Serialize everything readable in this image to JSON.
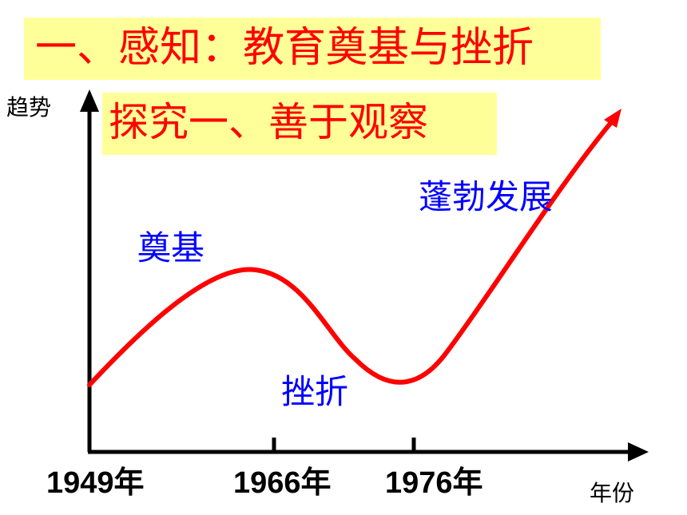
{
  "title": "一、感知：教育奠基与挫折",
  "subtitle": "探究一、善于观察",
  "axes": {
    "y_label": "趋势",
    "x_label": "年份"
  },
  "years": [
    "1949年",
    "1966年",
    "1976年"
  ],
  "stages": {
    "foundation": "奠基",
    "setback": "挫折",
    "prosperity": "蓬勃发展"
  },
  "colors": {
    "banner_bg": "#ffff99",
    "banner_text": "#ff0000",
    "curve": "#ff0000",
    "stage_text": "#0000ff",
    "axis": "#000000"
  }
}
